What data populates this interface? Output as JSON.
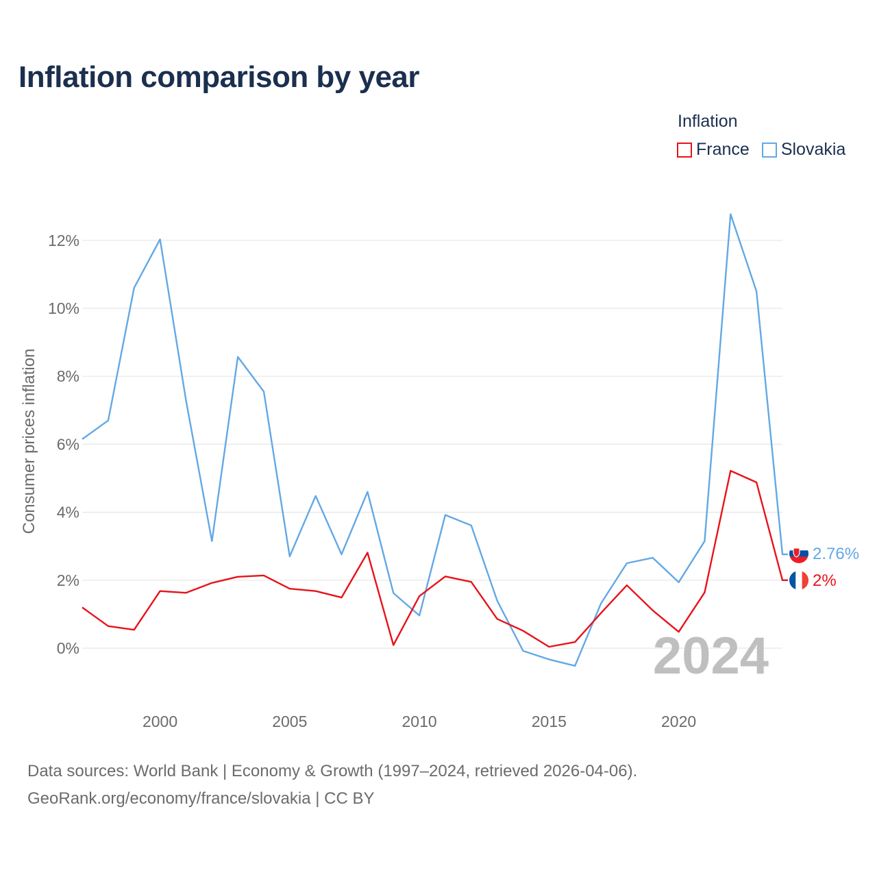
{
  "title": "Inflation comparison by year",
  "legend": {
    "title": "Inflation",
    "items": [
      {
        "label": "France",
        "color": "#e8121a"
      },
      {
        "label": "Slovakia",
        "color": "#62a8e5"
      }
    ]
  },
  "footer": {
    "line1": "Data sources: World Bank | Economy & Growth (1997–2024, retrieved 2026-04-06).",
    "line2": "GeoRank.org/economy/france/slovakia | CC BY"
  },
  "chart_data": {
    "type": "line",
    "title": "Inflation comparison by year",
    "xlabel": "",
    "ylabel": "Consumer prices inflation",
    "x": [
      1997,
      1998,
      1999,
      2000,
      2001,
      2002,
      2003,
      2004,
      2005,
      2006,
      2007,
      2008,
      2009,
      2010,
      2011,
      2012,
      2013,
      2014,
      2015,
      2016,
      2017,
      2018,
      2019,
      2020,
      2021,
      2022,
      2023,
      2024
    ],
    "xlim": [
      1997,
      2024
    ],
    "ylim": [
      -1.5,
      13
    ],
    "x_ticks": [
      2000,
      2005,
      2010,
      2015,
      2020
    ],
    "y_ticks": [
      0,
      2,
      4,
      6,
      8,
      10,
      12
    ],
    "y_tick_labels": [
      "0%",
      "2%",
      "4%",
      "6%",
      "8%",
      "10%",
      "12%"
    ],
    "grid": true,
    "year_watermark": "2024",
    "series": [
      {
        "name": "Slovakia",
        "color": "#62a8e5",
        "end_label": "2.76%",
        "values": [
          6.15,
          6.7,
          10.6,
          12.03,
          7.3,
          3.15,
          8.57,
          7.55,
          2.7,
          4.48,
          2.76,
          4.6,
          1.62,
          0.96,
          3.92,
          3.61,
          1.4,
          -0.08,
          -0.33,
          -0.52,
          1.31,
          2.5,
          2.66,
          1.94,
          3.15,
          12.77,
          10.5,
          2.76
        ]
      },
      {
        "name": "France",
        "color": "#e8121a",
        "end_label": "2%",
        "values": [
          1.2,
          0.65,
          0.54,
          1.68,
          1.63,
          1.92,
          2.1,
          2.14,
          1.75,
          1.68,
          1.49,
          2.81,
          0.09,
          1.53,
          2.11,
          1.95,
          0.86,
          0.51,
          0.04,
          0.18,
          1.03,
          1.85,
          1.11,
          0.48,
          1.64,
          5.22,
          4.88,
          2.0
        ]
      }
    ]
  }
}
